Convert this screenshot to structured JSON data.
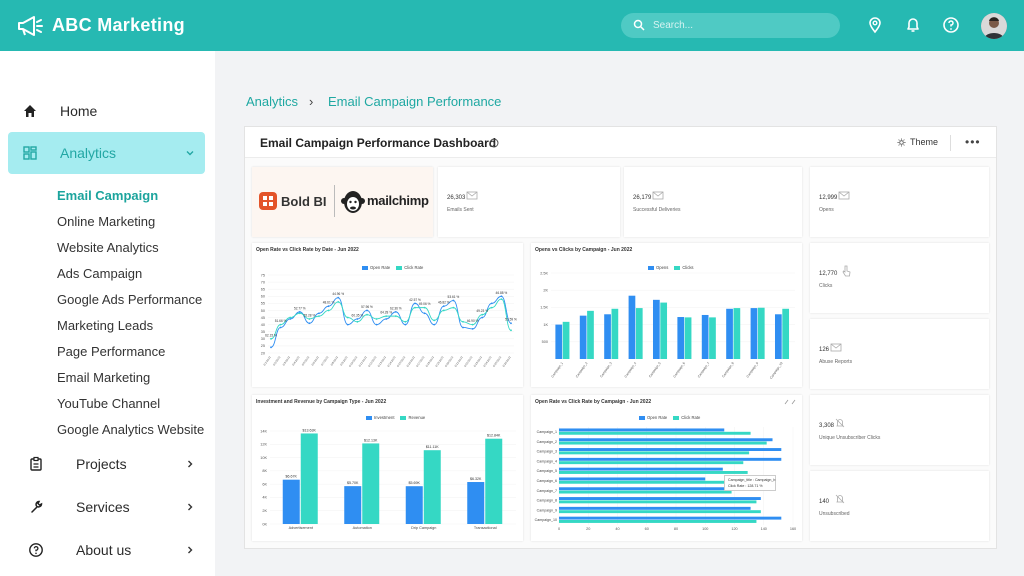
{
  "app": {
    "title": "ABC Marketing"
  },
  "search": {
    "placeholder": "Search..."
  },
  "header_icons": [
    "location-icon",
    "bell-icon",
    "help-icon"
  ],
  "colors": {
    "brand": "#26b9b2",
    "accent_blue": "#2f8ef2",
    "accent_teal": "#35d8c4",
    "active_nav_bg": "#a5ecf0"
  },
  "sidebar": {
    "items": [
      {
        "label": "Home",
        "icon": "home-icon"
      },
      {
        "label": "Analytics",
        "icon": "dashboard-icon"
      },
      {
        "label": "Projects",
        "icon": "clipboard-icon"
      },
      {
        "label": "Services",
        "icon": "wrench-icon"
      },
      {
        "label": "About us",
        "icon": "question-circle-icon"
      }
    ],
    "analytics_sub": [
      "Email Campaign",
      "Online Marketing",
      "Website Analytics",
      "Ads Campaign",
      "Google Ads Performance",
      "Marketing Leads",
      "Page Performance",
      "Email Marketing",
      "YouTube Channel",
      "Google Analytics Website"
    ]
  },
  "breadcrumb": {
    "parent": "Analytics",
    "separator": "›",
    "current": "Email Campaign Performance"
  },
  "dashboard": {
    "title": "Email Campaign Performance Dashboard",
    "theme_label": "Theme",
    "more_label": "•••",
    "brand_left": "Bold BI",
    "brand_right": "mailchimp",
    "kpis": [
      {
        "value": "26,303",
        "label": "Emails Sent"
      },
      {
        "value": "26,179",
        "label": "Successful Deliveries"
      },
      {
        "value": "12,999",
        "label": "Opens"
      },
      {
        "value": "12,770",
        "label": "Clicks"
      },
      {
        "value": "126",
        "label": "Abuse Reports"
      },
      {
        "value": "3,308",
        "label": "Unique Unsubscriber Clicks"
      },
      {
        "value": "140",
        "label": "Unsubscribed"
      }
    ],
    "tooltip": {
      "line1": "Campaign_title : Campaign_b",
      "line2": "Click Rate : 128.71 %"
    }
  },
  "chart_data": [
    {
      "type": "line",
      "title": "Open Rate vs Click Rate by Date - Jun 2022",
      "ylim": [
        20,
        75
      ],
      "yticks": [
        20,
        25,
        30,
        35,
        40,
        45,
        50,
        55,
        60,
        65,
        70,
        75
      ],
      "series": [
        {
          "name": "Open Rate",
          "color": "#2f8ef2",
          "values": [
            24,
            38,
            44,
            49,
            41,
            48,
            53,
            59,
            40,
            44,
            50,
            40,
            44,
            49,
            40,
            55,
            48,
            40,
            53,
            57,
            38,
            37,
            45,
            55,
            60,
            41
          ]
        },
        {
          "name": "Click Rate",
          "color": "#35d8c4",
          "values": [
            30,
            40,
            45,
            48,
            44,
            46,
            50,
            56,
            45,
            42,
            47,
            44,
            46,
            46,
            42,
            52,
            52,
            43,
            50,
            52,
            42,
            40,
            47,
            52,
            58,
            36
          ]
        }
      ],
      "annotations": [
        "62.15 %",
        "51.66 %",
        "52.77 %",
        "55.28 %",
        "48.61 %",
        "44.96 %",
        "60.35 %",
        "57.96 %",
        "64.28 %",
        "62.36 %",
        "42.57 %",
        "49.06 %",
        "46.82 %",
        "53.61 %",
        "46.90 %",
        "49.23 %",
        "46.88 %",
        "53.59 %"
      ]
    },
    {
      "type": "bar",
      "title": "Opens vs Clicks by Campaign - Jun 2022",
      "categories": [
        "Campaign_1",
        "Campaign_2",
        "Campaign_3",
        "Campaign_4",
        "Campaign_5",
        "Campaign_6",
        "Campaign_7",
        "Campaign_8",
        "Campaign_9",
        "Campaign_10"
      ],
      "yticks": [
        "500",
        "1K",
        "1.5K",
        "2K",
        "2.5K"
      ],
      "ylim": [
        0,
        2500
      ],
      "series": [
        {
          "name": "Opens",
          "color": "#2f8ef2",
          "values": [
            1000,
            1260,
            1300,
            1840,
            1720,
            1220,
            1280,
            1460,
            1480,
            1300
          ]
        },
        {
          "name": "Clicks",
          "color": "#35d8c4",
          "values": [
            1080,
            1400,
            1460,
            1480,
            1640,
            1210,
            1210,
            1480,
            1490,
            1460
          ]
        }
      ]
    },
    {
      "type": "bar",
      "title": "Investment and Revenue by Campaign Type - Jun 2022",
      "categories": [
        "Advertisement",
        "Automation",
        "Drip Campaign",
        "Transactional"
      ],
      "yticks": [
        "0K",
        "2K",
        "4K",
        "6K",
        "8K",
        "10K",
        "12K",
        "14K"
      ],
      "ylim": [
        0,
        14000
      ],
      "series": [
        {
          "name": "Investment",
          "color": "#2f8ef2",
          "values": [
            6670,
            5700,
            5690,
            6320
          ]
        },
        {
          "name": "Revenue",
          "color": "#35d8c4",
          "values": [
            13630,
            12130,
            11110,
            12840
          ]
        }
      ],
      "labels_investment": [
        "$6.67K",
        "$5.70K",
        "$5.69K",
        "$6.32K"
      ],
      "labels_revenue": [
        "$13.63K",
        "$12.13K",
        "$11.11K",
        "$12.84K"
      ]
    },
    {
      "type": "bar",
      "orientation": "horizontal",
      "title": "Open Rate vs Click Rate by Campaign - Jun 2022",
      "categories": [
        "Campaign_1",
        "Campaign_2",
        "Campaign_3",
        "Campaign_4",
        "Campaign_5",
        "Campaign_6",
        "Campaign_7",
        "Campaign_8",
        "Campaign_9",
        "Campaign_10"
      ],
      "xticks": [
        0,
        20,
        40,
        60,
        80,
        100,
        120,
        140,
        160
      ],
      "xlim": [
        0,
        160
      ],
      "series": [
        {
          "name": "Open Rate",
          "color": "#2f8ef2",
          "values": [
            113,
            146,
            152,
            152,
            112,
            100,
            137,
            138,
            131,
            152
          ]
        },
        {
          "name": "Click Rate",
          "color": "#35d8c4",
          "values": [
            131,
            142,
            130,
            126,
            129,
            129,
            118,
            135,
            138,
            135
          ]
        }
      ]
    }
  ]
}
